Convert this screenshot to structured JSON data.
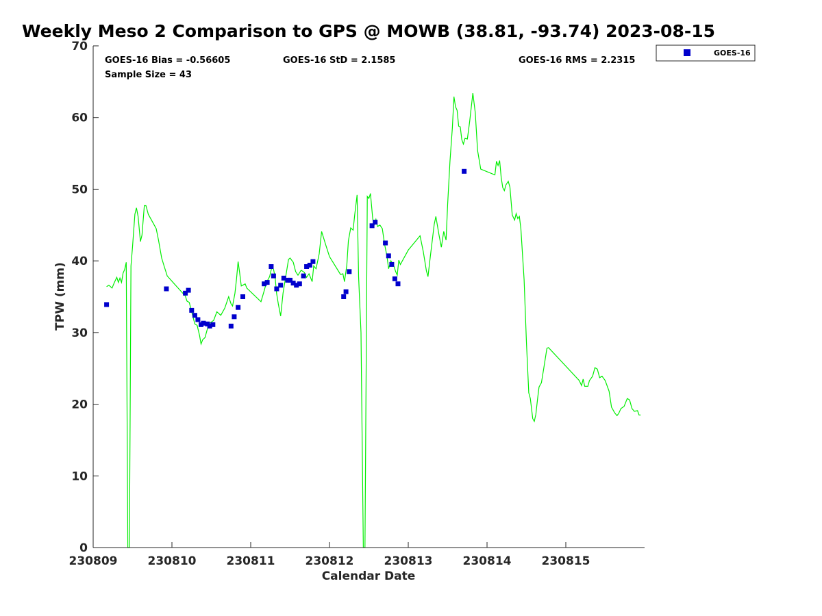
{
  "chart_data": {
    "type": "scatter",
    "title": "Weekly Meso 2 Comparison to GPS @ MOWB (38.81, -93.74) 2023-08-15",
    "xlabel": "Calendar Date",
    "ylabel": "TPW (mm)",
    "xlim": [
      230809,
      230816
    ],
    "ylim": [
      0,
      70
    ],
    "x_ticks": [
      "230809",
      "230810",
      "230811",
      "230812",
      "230813",
      "230814",
      "230815"
    ],
    "y_ticks": [
      "0",
      "10",
      "20",
      "30",
      "40",
      "50",
      "60",
      "70"
    ],
    "grid": false,
    "legend": {
      "position": "top-right outside",
      "entries": [
        "GOES-16"
      ]
    },
    "stats": {
      "bias": "GOES-16 Bias = -0.56605",
      "std": "GOES-16 StD = 2.1585",
      "rms": "GOES-16 RMS = 2.2315",
      "sample": "Sample Size = 43"
    },
    "series": [
      {
        "name": "GOES-16",
        "kind": "scatter",
        "color": "#0000cc",
        "points": [
          [
            230809.17,
            33.9
          ],
          [
            230809.93,
            36.1
          ],
          [
            230810.17,
            35.5
          ],
          [
            230810.21,
            35.9
          ],
          [
            230810.25,
            33.1
          ],
          [
            230810.29,
            32.4
          ],
          [
            230810.33,
            31.8
          ],
          [
            230810.37,
            31.1
          ],
          [
            230810.4,
            31.3
          ],
          [
            230810.45,
            31.2
          ],
          [
            230810.48,
            30.9
          ],
          [
            230810.52,
            31.1
          ],
          [
            230810.75,
            30.9
          ],
          [
            230810.79,
            32.2
          ],
          [
            230810.84,
            33.5
          ],
          [
            230810.9,
            35.0
          ],
          [
            230811.17,
            36.8
          ],
          [
            230811.21,
            37.0
          ],
          [
            230811.26,
            39.2
          ],
          [
            230811.29,
            37.9
          ],
          [
            230811.33,
            36.1
          ],
          [
            230811.38,
            36.6
          ],
          [
            230811.42,
            37.6
          ],
          [
            230811.47,
            37.3
          ],
          [
            230811.5,
            37.3
          ],
          [
            230811.54,
            36.9
          ],
          [
            230811.58,
            36.6
          ],
          [
            230811.62,
            36.8
          ],
          [
            230811.67,
            37.9
          ],
          [
            230811.71,
            39.2
          ],
          [
            230811.75,
            39.4
          ],
          [
            230811.79,
            39.9
          ],
          [
            230812.18,
            35.0
          ],
          [
            230812.21,
            35.7
          ],
          [
            230812.25,
            38.5
          ],
          [
            230812.54,
            44.9
          ],
          [
            230812.58,
            45.4
          ],
          [
            230812.71,
            42.5
          ],
          [
            230812.75,
            40.7
          ],
          [
            230812.79,
            39.5
          ],
          [
            230812.83,
            37.5
          ],
          [
            230812.87,
            36.8
          ],
          [
            230813.71,
            52.5
          ]
        ]
      },
      {
        "name": "GPS",
        "kind": "line",
        "color": "#00ee00",
        "points": [
          [
            230809.17,
            36.4
          ],
          [
            230809.2,
            36.6
          ],
          [
            230809.24,
            36.2
          ],
          [
            230809.27,
            37.0
          ],
          [
            230809.3,
            37.7
          ],
          [
            230809.32,
            37.0
          ],
          [
            230809.34,
            37.6
          ],
          [
            230809.36,
            37.0
          ],
          [
            230809.38,
            38.3
          ],
          [
            230809.4,
            38.8
          ],
          [
            230809.42,
            39.8
          ],
          [
            230809.44,
            0.0
          ],
          [
            230809.46,
            0.0
          ],
          [
            230809.48,
            39.3
          ],
          [
            230809.5,
            42.0
          ],
          [
            230809.53,
            46.5
          ],
          [
            230809.55,
            47.4
          ],
          [
            230809.57,
            46.2
          ],
          [
            230809.6,
            42.7
          ],
          [
            230809.62,
            43.6
          ],
          [
            230809.65,
            47.7
          ],
          [
            230809.67,
            47.7
          ],
          [
            230809.7,
            46.5
          ],
          [
            230809.8,
            44.5
          ],
          [
            230809.83,
            42.9
          ],
          [
            230809.87,
            40.4
          ],
          [
            230809.9,
            39.3
          ],
          [
            230809.94,
            37.9
          ],
          [
            230810.07,
            36.3
          ],
          [
            230810.17,
            35.1
          ],
          [
            230810.19,
            34.4
          ],
          [
            230810.22,
            34.2
          ],
          [
            230810.26,
            32.5
          ],
          [
            230810.29,
            31.2
          ],
          [
            230810.32,
            31.0
          ],
          [
            230810.35,
            29.6
          ],
          [
            230810.37,
            28.4
          ],
          [
            230810.39,
            29.0
          ],
          [
            230810.42,
            29.3
          ],
          [
            230810.46,
            30.9
          ],
          [
            230810.48,
            31.3
          ],
          [
            230810.53,
            31.7
          ],
          [
            230810.57,
            32.9
          ],
          [
            230810.62,
            32.4
          ],
          [
            230810.67,
            33.4
          ],
          [
            230810.72,
            35.0
          ],
          [
            230810.75,
            34.0
          ],
          [
            230810.77,
            33.7
          ],
          [
            230810.8,
            35.5
          ],
          [
            230810.82,
            37.5
          ],
          [
            230810.84,
            39.9
          ],
          [
            230810.86,
            38.3
          ],
          [
            230810.88,
            36.5
          ],
          [
            230810.9,
            36.6
          ],
          [
            230810.93,
            36.8
          ],
          [
            230810.95,
            36.2
          ],
          [
            230811.13,
            34.3
          ],
          [
            230811.17,
            35.8
          ],
          [
            230811.2,
            37.0
          ],
          [
            230811.24,
            37.8
          ],
          [
            230811.27,
            39.2
          ],
          [
            230811.29,
            38.8
          ],
          [
            230811.31,
            37.7
          ],
          [
            230811.33,
            35.4
          ],
          [
            230811.35,
            34.0
          ],
          [
            230811.38,
            32.3
          ],
          [
            230811.41,
            35.5
          ],
          [
            230811.44,
            37.5
          ],
          [
            230811.48,
            40.2
          ],
          [
            230811.5,
            40.4
          ],
          [
            230811.54,
            39.8
          ],
          [
            230811.57,
            38.5
          ],
          [
            230811.6,
            38.0
          ],
          [
            230811.64,
            38.7
          ],
          [
            230811.68,
            38.4
          ],
          [
            230811.71,
            37.7
          ],
          [
            230811.74,
            38.2
          ],
          [
            230811.78,
            37.1
          ],
          [
            230811.8,
            39.3
          ],
          [
            230811.83,
            38.9
          ],
          [
            230811.87,
            41.0
          ],
          [
            230811.9,
            44.1
          ],
          [
            230811.95,
            42.3
          ],
          [
            230812.0,
            40.6
          ],
          [
            230812.14,
            38.1
          ],
          [
            230812.17,
            38.2
          ],
          [
            230812.19,
            37.1
          ],
          [
            230812.22,
            39.4
          ],
          [
            230812.24,
            42.8
          ],
          [
            230812.27,
            44.6
          ],
          [
            230812.3,
            44.3
          ],
          [
            230812.32,
            46.4
          ],
          [
            230812.35,
            49.2
          ],
          [
            230812.37,
            37.8
          ],
          [
            230812.4,
            30.0
          ],
          [
            230812.43,
            0.0
          ],
          [
            230812.45,
            0.0
          ],
          [
            230812.48,
            49.0
          ],
          [
            230812.5,
            48.7
          ],
          [
            230812.52,
            49.4
          ],
          [
            230812.55,
            45.8
          ],
          [
            230812.57,
            45.1
          ],
          [
            230812.59,
            45.8
          ],
          [
            230812.61,
            44.8
          ],
          [
            230812.64,
            45.0
          ],
          [
            230812.67,
            44.5
          ],
          [
            230812.7,
            42.3
          ],
          [
            230812.73,
            40.6
          ],
          [
            230812.75,
            38.9
          ],
          [
            230812.78,
            40.0
          ],
          [
            230812.82,
            39.2
          ],
          [
            230812.84,
            38.5
          ],
          [
            230812.86,
            38.0
          ],
          [
            230812.88,
            40.1
          ],
          [
            230812.9,
            39.5
          ],
          [
            230813.0,
            41.5
          ],
          [
            230813.15,
            43.5
          ],
          [
            230813.19,
            41.3
          ],
          [
            230813.23,
            38.6
          ],
          [
            230813.25,
            37.8
          ],
          [
            230813.28,
            40.6
          ],
          [
            230813.33,
            45.1
          ],
          [
            230813.35,
            46.2
          ],
          [
            230813.39,
            43.6
          ],
          [
            230813.42,
            41.9
          ],
          [
            230813.45,
            44.1
          ],
          [
            230813.48,
            42.9
          ],
          [
            230813.5,
            47.9
          ],
          [
            230813.53,
            53.9
          ],
          [
            230813.56,
            58.6
          ],
          [
            230813.58,
            62.9
          ],
          [
            230813.6,
            61.5
          ],
          [
            230813.62,
            61.0
          ],
          [
            230813.64,
            58.8
          ],
          [
            230813.66,
            58.7
          ],
          [
            230813.68,
            56.9
          ],
          [
            230813.7,
            56.3
          ],
          [
            230813.72,
            57.1
          ],
          [
            230813.75,
            57.0
          ],
          [
            230813.78,
            59.5
          ],
          [
            230813.82,
            63.4
          ],
          [
            230813.85,
            60.7
          ],
          [
            230813.88,
            55.4
          ],
          [
            230813.92,
            52.8
          ],
          [
            230814.1,
            52.0
          ],
          [
            230814.12,
            53.9
          ],
          [
            230814.14,
            53.3
          ],
          [
            230814.16,
            54.0
          ],
          [
            230814.18,
            51.6
          ],
          [
            230814.2,
            50.2
          ],
          [
            230814.22,
            49.8
          ],
          [
            230814.24,
            50.6
          ],
          [
            230814.27,
            51.1
          ],
          [
            230814.29,
            50.3
          ],
          [
            230814.32,
            46.4
          ],
          [
            230814.35,
            45.7
          ],
          [
            230814.37,
            46.6
          ],
          [
            230814.39,
            45.9
          ],
          [
            230814.41,
            46.2
          ],
          [
            230814.43,
            44.5
          ],
          [
            230814.47,
            37.4
          ],
          [
            230814.5,
            28.7
          ],
          [
            230814.53,
            21.6
          ],
          [
            230814.55,
            20.8
          ],
          [
            230814.58,
            18.0
          ],
          [
            230814.6,
            17.6
          ],
          [
            230814.62,
            18.6
          ],
          [
            230814.64,
            20.6
          ],
          [
            230814.66,
            22.4
          ],
          [
            230814.69,
            23.0
          ],
          [
            230814.72,
            25.0
          ],
          [
            230814.76,
            27.8
          ],
          [
            230814.78,
            27.9
          ],
          [
            230815.17,
            23.3
          ],
          [
            230815.2,
            22.6
          ],
          [
            230815.22,
            23.5
          ],
          [
            230815.24,
            22.5
          ],
          [
            230815.28,
            22.5
          ],
          [
            230815.3,
            23.3
          ],
          [
            230815.34,
            23.9
          ],
          [
            230815.37,
            25.1
          ],
          [
            230815.4,
            24.9
          ],
          [
            230815.43,
            23.7
          ],
          [
            230815.46,
            23.9
          ],
          [
            230815.5,
            23.3
          ],
          [
            230815.55,
            21.8
          ],
          [
            230815.58,
            19.6
          ],
          [
            230815.62,
            18.8
          ],
          [
            230815.65,
            18.4
          ],
          [
            230815.67,
            18.7
          ],
          [
            230815.7,
            19.4
          ],
          [
            230815.74,
            19.7
          ],
          [
            230815.78,
            20.8
          ],
          [
            230815.81,
            20.6
          ],
          [
            230815.84,
            19.4
          ],
          [
            230815.87,
            19.0
          ],
          [
            230815.91,
            19.1
          ],
          [
            230815.93,
            18.5
          ],
          [
            230815.95,
            18.5
          ]
        ]
      }
    ]
  }
}
